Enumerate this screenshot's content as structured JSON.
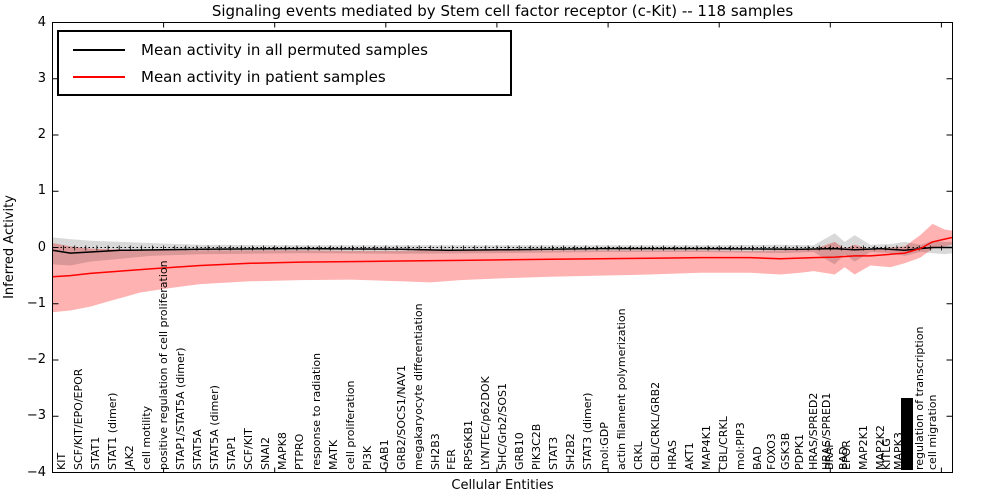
{
  "title": "Signaling events mediated by Stem cell factor receptor (c-Kit) -- 118 samples",
  "axes": {
    "ylabel": "Inferred Activity",
    "xlabel": "Cellular Entities"
  },
  "legend": {
    "items": [
      {
        "label": "Mean activity in all permuted samples",
        "color": "#000000"
      },
      {
        "label": "Mean activity in patient samples",
        "color": "#ff0000"
      }
    ]
  },
  "chart_data": {
    "type": "line",
    "title": "Signaling events mediated by Stem cell factor receptor (c-Kit) -- 118 samples",
    "xlabel": "Cellular Entities",
    "ylabel": "Inferred Activity",
    "ylim": [
      -4,
      4
    ],
    "xlim": [
      0,
      81
    ],
    "grid": false,
    "legend_position": "upper left",
    "zero_line_style": "dotted",
    "yticks": [
      {
        "v": 4,
        "label": "4"
      },
      {
        "v": 3,
        "label": "3"
      },
      {
        "v": 2,
        "label": "2"
      },
      {
        "v": 1,
        "label": "1"
      },
      {
        "v": 0,
        "label": "0"
      },
      {
        "v": -1,
        "label": "−1"
      },
      {
        "v": -2,
        "label": "−2"
      },
      {
        "v": -3,
        "label": "−3"
      },
      {
        "v": -4,
        "label": "−4"
      }
    ],
    "top_ticks_every": 10,
    "unit_ticks_on_zero_line": true,
    "series": [
      {
        "name": "Mean activity in all permuted samples",
        "color": "#000000",
        "points": [
          [
            0,
            -0.05
          ],
          [
            1.6,
            -0.1
          ],
          [
            3.4,
            -0.08
          ],
          [
            6.1,
            -0.05
          ],
          [
            13.3,
            -0.03
          ],
          [
            22.3,
            -0.02
          ],
          [
            31.3,
            -0.03
          ],
          [
            35.6,
            -0.05
          ],
          [
            40.3,
            -0.04
          ],
          [
            49.3,
            -0.02
          ],
          [
            58.3,
            -0.02
          ],
          [
            67.3,
            -0.03
          ],
          [
            70.4,
            -0.02
          ],
          [
            72.2,
            -0.04
          ],
          [
            74.5,
            -0.02
          ],
          [
            76.7,
            -0.05
          ],
          [
            78.1,
            -0.02
          ],
          [
            79.2,
            0.0
          ],
          [
            81,
            0.0
          ]
        ],
        "band": {
          "color": "#000000",
          "opacity": 0.15,
          "upper": [
            [
              0,
              0.18
            ],
            [
              1.6,
              0.15
            ],
            [
              3.4,
              0.12
            ],
            [
              6.1,
              0.1
            ],
            [
              8.8,
              0.08
            ],
            [
              13.3,
              0.05
            ],
            [
              22.3,
              0.04
            ],
            [
              31.3,
              0.04
            ],
            [
              40.3,
              0.04
            ],
            [
              49.3,
              0.04
            ],
            [
              58.3,
              0.04
            ],
            [
              65.5,
              0.05
            ],
            [
              68.5,
              0.04
            ],
            [
              70.4,
              0.25
            ],
            [
              71.3,
              0.1
            ],
            [
              72.2,
              0.22
            ],
            [
              73.6,
              0.05
            ],
            [
              75.4,
              0.06
            ],
            [
              76.7,
              0.1
            ],
            [
              78.1,
              0.05
            ],
            [
              79.2,
              0.12
            ],
            [
              80.3,
              0.1
            ],
            [
              81,
              0.1
            ]
          ],
          "lower": [
            [
              0,
              -0.3
            ],
            [
              1.6,
              -0.32
            ],
            [
              3.4,
              -0.25
            ],
            [
              6.1,
              -0.2
            ],
            [
              8.8,
              -0.15
            ],
            [
              13.3,
              -0.12
            ],
            [
              22.3,
              -0.1
            ],
            [
              31.3,
              -0.11
            ],
            [
              40.3,
              -0.1
            ],
            [
              49.3,
              -0.08
            ],
            [
              58.3,
              -0.08
            ],
            [
              65.5,
              -0.1
            ],
            [
              68.5,
              -0.08
            ],
            [
              70.4,
              -0.3
            ],
            [
              71.3,
              -0.12
            ],
            [
              72.2,
              -0.25
            ],
            [
              73.6,
              -0.08
            ],
            [
              75.4,
              -0.1
            ],
            [
              76.7,
              -0.15
            ],
            [
              78.1,
              -0.08
            ],
            [
              79.2,
              -0.1
            ],
            [
              80.3,
              -0.12
            ],
            [
              81,
              -0.1
            ]
          ]
        }
      },
      {
        "name": "Mean activity in patient samples",
        "color": "#ff0000",
        "points": [
          [
            0,
            -0.52
          ],
          [
            1.6,
            -0.5
          ],
          [
            3.4,
            -0.46
          ],
          [
            6.1,
            -0.42
          ],
          [
            8.8,
            -0.38
          ],
          [
            13.3,
            -0.32
          ],
          [
            17.8,
            -0.28
          ],
          [
            22.3,
            -0.26
          ],
          [
            26.8,
            -0.25
          ],
          [
            31.3,
            -0.24
          ],
          [
            36.7,
            -0.23
          ],
          [
            40.3,
            -0.22
          ],
          [
            44.8,
            -0.21
          ],
          [
            49.3,
            -0.2
          ],
          [
            53.8,
            -0.19
          ],
          [
            58.3,
            -0.18
          ],
          [
            62.8,
            -0.18
          ],
          [
            65.5,
            -0.2
          ],
          [
            68.5,
            -0.18
          ],
          [
            70.4,
            -0.17
          ],
          [
            72.2,
            -0.15
          ],
          [
            73.6,
            -0.15
          ],
          [
            75.4,
            -0.12
          ],
          [
            76.7,
            -0.1
          ],
          [
            78.1,
            -0.02
          ],
          [
            79.2,
            0.1
          ],
          [
            80.3,
            0.15
          ],
          [
            81,
            0.18
          ]
        ],
        "band": {
          "color": "#ff0000",
          "opacity": 0.3,
          "upper": [
            [
              0,
              0.08
            ],
            [
              1.6,
              0.02
            ],
            [
              3.4,
              -0.02
            ],
            [
              5.2,
              -0.03
            ],
            [
              7.9,
              -0.04
            ],
            [
              10.6,
              -0.05
            ],
            [
              13.3,
              -0.05
            ],
            [
              17.8,
              -0.05
            ],
            [
              22.3,
              -0.05
            ],
            [
              26.8,
              -0.06
            ],
            [
              31.3,
              -0.06
            ],
            [
              34,
              -0.05
            ],
            [
              36.7,
              -0.05
            ],
            [
              40.3,
              -0.05
            ],
            [
              44.8,
              -0.05
            ],
            [
              49.3,
              -0.05
            ],
            [
              53.8,
              -0.05
            ],
            [
              58.3,
              -0.05
            ],
            [
              62.8,
              -0.06
            ],
            [
              65.5,
              -0.05
            ],
            [
              67.3,
              -0.04
            ],
            [
              68.5,
              -0.03
            ],
            [
              70.4,
              0.1
            ],
            [
              71.3,
              -0.02
            ],
            [
              72.2,
              0.05
            ],
            [
              73.6,
              -0.03
            ],
            [
              75.4,
              0.0
            ],
            [
              76.7,
              0.02
            ],
            [
              78.1,
              0.22
            ],
            [
              79.2,
              0.42
            ],
            [
              80.3,
              0.32
            ],
            [
              81,
              0.3
            ]
          ],
          "lower": [
            [
              0,
              -1.15
            ],
            [
              1.6,
              -1.12
            ],
            [
              3.4,
              -1.05
            ],
            [
              5.2,
              -0.95
            ],
            [
              7.9,
              -0.8
            ],
            [
              10.6,
              -0.72
            ],
            [
              13.3,
              -0.65
            ],
            [
              17.8,
              -0.6
            ],
            [
              22.3,
              -0.58
            ],
            [
              26.8,
              -0.57
            ],
            [
              31.3,
              -0.6
            ],
            [
              34,
              -0.62
            ],
            [
              36.7,
              -0.58
            ],
            [
              40.3,
              -0.55
            ],
            [
              44.8,
              -0.52
            ],
            [
              49.3,
              -0.5
            ],
            [
              53.8,
              -0.48
            ],
            [
              58.3,
              -0.45
            ],
            [
              62.8,
              -0.45
            ],
            [
              65.5,
              -0.48
            ],
            [
              67.3,
              -0.45
            ],
            [
              68.5,
              -0.42
            ],
            [
              70.4,
              -0.48
            ],
            [
              71.3,
              -0.35
            ],
            [
              72.2,
              -0.48
            ],
            [
              73.6,
              -0.32
            ],
            [
              75.4,
              -0.35
            ],
            [
              76.7,
              -0.28
            ],
            [
              78.1,
              -0.18
            ],
            [
              79.2,
              -0.02
            ],
            [
              80.3,
              0.02
            ],
            [
              81,
              0.05
            ]
          ]
        }
      }
    ],
    "entities": [
      {
        "label": "KIT",
        "x": 0.81
      },
      {
        "label": "SCF/KIT/EPO/EPOR",
        "x": 2.34
      },
      {
        "label": "STAT1",
        "x": 3.87
      },
      {
        "label": "STAT1 (dimer)",
        "x": 5.39
      },
      {
        "label": "JAK2",
        "x": 6.92
      },
      {
        "label": "cell motility",
        "x": 8.45
      },
      {
        "label": "positive regulation of cell proliferation",
        "x": 9.98
      },
      {
        "label": "STAP1/STAT5A (dimer)",
        "x": 11.51
      },
      {
        "label": "STAT5A",
        "x": 13.03
      },
      {
        "label": "STAT5A (dimer)",
        "x": 14.56
      },
      {
        "label": "STAP1",
        "x": 16.09
      },
      {
        "label": "SCF/KIT",
        "x": 17.62
      },
      {
        "label": "SNAI2",
        "x": 19.15
      },
      {
        "label": "MAPK8",
        "x": 20.67
      },
      {
        "label": "PTPRO",
        "x": 22.2
      },
      {
        "label": "response to radiation",
        "x": 23.73
      },
      {
        "label": "MATK",
        "x": 25.26
      },
      {
        "label": "cell proliferation",
        "x": 26.79
      },
      {
        "label": "PI3K",
        "x": 28.31
      },
      {
        "label": "GAB1",
        "x": 29.84
      },
      {
        "label": "GRB2/SOCS1/NAV1",
        "x": 31.37
      },
      {
        "label": "megakaryocyte differentiation",
        "x": 32.9
      },
      {
        "label": "SH2B3",
        "x": 34.43
      },
      {
        "label": "FER",
        "x": 35.95
      },
      {
        "label": "RPS6KB1",
        "x": 37.48
      },
      {
        "label": "LYN/TEC/p62DOK",
        "x": 39.01
      },
      {
        "label": "SHC/Grb2/SOS1",
        "x": 40.54
      },
      {
        "label": "GRB10",
        "x": 42.07
      },
      {
        "label": "PIK3C2B",
        "x": 43.59
      },
      {
        "label": "STAT3",
        "x": 45.12
      },
      {
        "label": "SH2B2",
        "x": 46.65
      },
      {
        "label": "STAT3 (dimer)",
        "x": 48.18
      },
      {
        "label": "mol:GDP",
        "x": 49.71
      },
      {
        "label": "actin filament polymerization",
        "x": 51.23
      },
      {
        "label": "CRKL",
        "x": 52.76
      },
      {
        "label": "CBL/CRKL/GRB2",
        "x": 54.29
      },
      {
        "label": "HRAS",
        "x": 55.82
      },
      {
        "label": "AKT1",
        "x": 57.35
      },
      {
        "label": "MAP4K1",
        "x": 58.87
      },
      {
        "label": "CBL/CRKL",
        "x": 60.4
      },
      {
        "label": "mol:PIP3",
        "x": 61.93
      },
      {
        "label": "BAD",
        "x": 63.46
      },
      {
        "label": "FOXO3",
        "x": 64.7
      },
      {
        "label": "GSK3B",
        "x": 66.0
      },
      {
        "label": "PDPK1",
        "x": 67.2
      },
      {
        "label": "HRAS/SPRED2",
        "x": 68.5
      },
      {
        "label": "HRAS/SPRED1",
        "x": 69.7
      },
      {
        "label": "BRAF",
        "x": 69.9
      },
      {
        "label": "BAD",
        "x": 71.2
      },
      {
        "label": "EPOR",
        "x": 71.5
      },
      {
        "label": "MAP2K1",
        "x": 73.0
      },
      {
        "label": "MAP2K2",
        "x": 74.5
      },
      {
        "label": "KITLG",
        "x": 75.1
      },
      {
        "label": "MAPK3",
        "x": 76.1
      },
      {
        "label": "(unreadable overlapping labels)",
        "x": 76.8,
        "blob": true
      },
      {
        "label": "regulation of transcription",
        "x": 78.0
      },
      {
        "label": "cell migration",
        "x": 79.2
      }
    ]
  }
}
